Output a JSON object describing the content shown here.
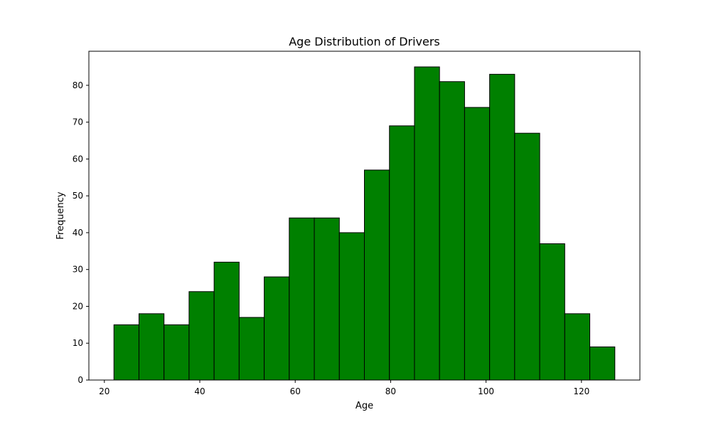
{
  "chart_data": {
    "type": "bar",
    "title": "Age Distribution of Drivers",
    "xlabel": "Age",
    "ylabel": "Frequency",
    "bin_edges": [
      22.0,
      27.25,
      32.5,
      37.75,
      43.0,
      48.25,
      53.5,
      58.75,
      64.0,
      69.25,
      74.5,
      79.75,
      85.0,
      90.25,
      95.5,
      100.75,
      106.0,
      111.25,
      116.5,
      121.75,
      127.0
    ],
    "values": [
      15,
      18,
      15,
      24,
      32,
      17,
      28,
      44,
      44,
      40,
      57,
      69,
      85,
      81,
      74,
      83,
      67,
      37,
      18,
      9
    ],
    "xlim": [
      16.75,
      132.25
    ],
    "ylim": [
      0,
      89.25
    ],
    "xticks": [
      20,
      40,
      60,
      80,
      100,
      120
    ],
    "yticks": [
      0,
      10,
      20,
      30,
      40,
      50,
      60,
      70,
      80
    ],
    "grid": false,
    "legend": false,
    "bar_color": "#008000",
    "edge_color": "#000000"
  }
}
